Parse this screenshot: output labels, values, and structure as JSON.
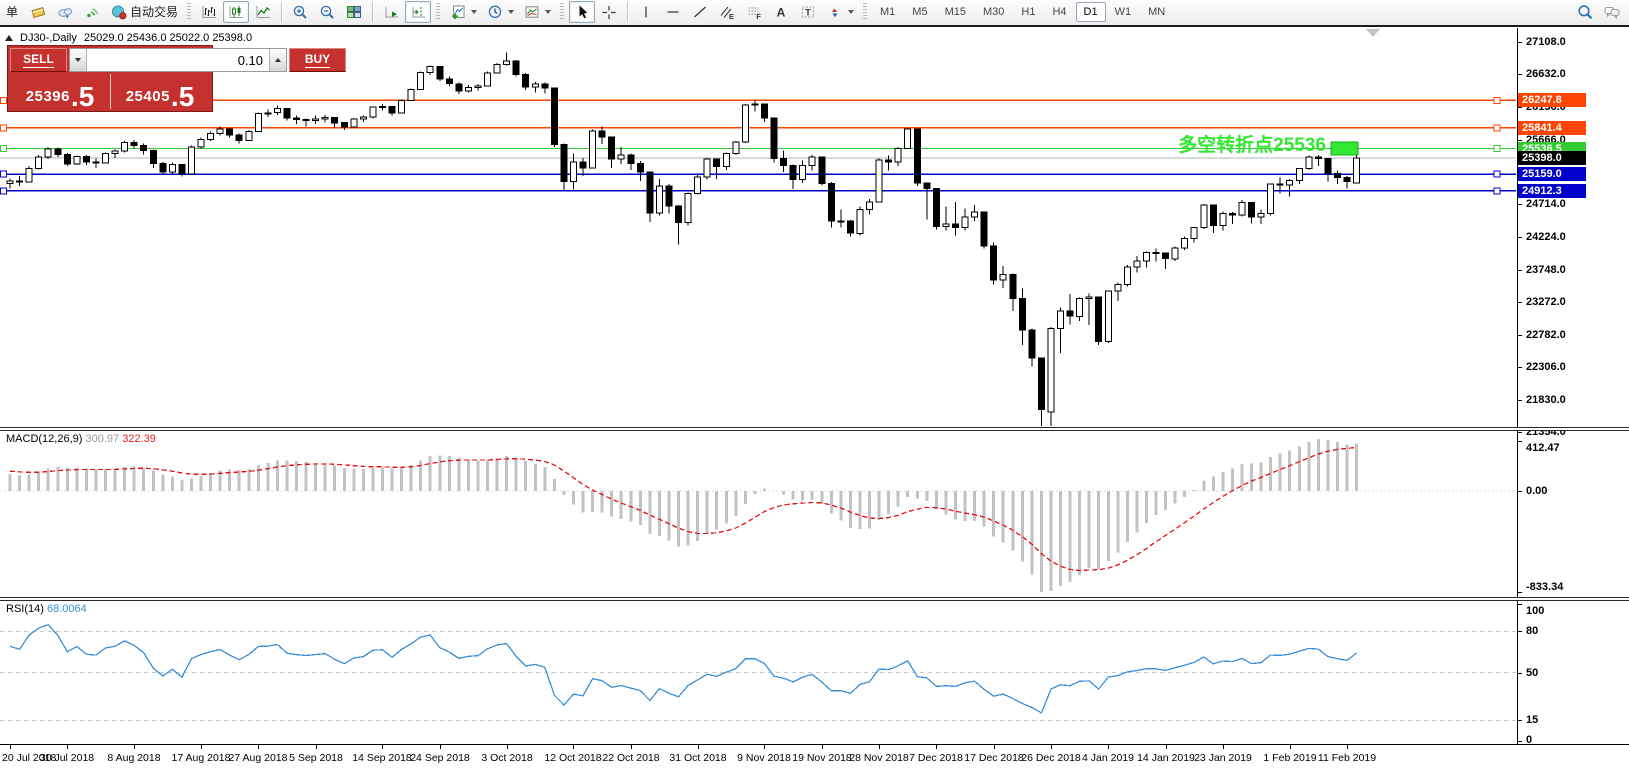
{
  "toolbar": {
    "timeframes": [
      "M1",
      "M5",
      "M15",
      "M30",
      "H1",
      "H4",
      "D1",
      "W1",
      "MN"
    ],
    "active_timeframe": "D1",
    "items": [
      {
        "t": "btn",
        "name": "new-order",
        "label": "单"
      },
      {
        "t": "btn",
        "name": "market-watch",
        "icon": "book"
      },
      {
        "t": "btn",
        "name": "chart-cloud",
        "icon": "cloud"
      },
      {
        "t": "btn",
        "name": "signals",
        "icon": "signal"
      },
      {
        "t": "btn",
        "name": "auto-trading",
        "icon": "autotrading",
        "label": "自动交易"
      },
      {
        "t": "grip"
      },
      {
        "t": "btn",
        "name": "bar-chart",
        "icon": "bars"
      },
      {
        "t": "btn",
        "name": "candlestick-chart",
        "icon": "candles",
        "pressed": true
      },
      {
        "t": "btn",
        "name": "line-chart",
        "icon": "linechart"
      },
      {
        "t": "sep"
      },
      {
        "t": "btn",
        "name": "zoom-in",
        "icon": "zoomin"
      },
      {
        "t": "btn",
        "name": "zoom-out",
        "icon": "zoomout"
      },
      {
        "t": "btn",
        "name": "tile-windows",
        "icon": "tiles"
      },
      {
        "t": "sep"
      },
      {
        "t": "btn",
        "name": "auto-scroll",
        "icon": "autoscroll"
      },
      {
        "t": "btn",
        "name": "chart-shift",
        "icon": "chartshift",
        "pressed": true
      },
      {
        "t": "grip"
      },
      {
        "t": "btn",
        "name": "indicators",
        "icon": "indicators",
        "caret": true
      },
      {
        "t": "btn",
        "name": "periods",
        "icon": "clock",
        "caret": true
      },
      {
        "t": "btn",
        "name": "templates",
        "icon": "template",
        "caret": true
      },
      {
        "t": "grip"
      },
      {
        "t": "btn",
        "name": "cursor",
        "icon": "cursor",
        "pressed": true
      },
      {
        "t": "btn",
        "name": "crosshair",
        "icon": "crosshair"
      },
      {
        "t": "sep"
      },
      {
        "t": "btn",
        "name": "vertical-line",
        "icon": "vline"
      },
      {
        "t": "btn",
        "name": "horizontal-line",
        "icon": "hline"
      },
      {
        "t": "btn",
        "name": "trendline",
        "icon": "trendline"
      },
      {
        "t": "btn",
        "name": "equidistant-channel",
        "icon": "channel",
        "glyph": "E"
      },
      {
        "t": "btn",
        "name": "fibonacci-retracement",
        "icon": "fibo",
        "glyph": "F"
      },
      {
        "t": "btn",
        "name": "text",
        "icon": "biga",
        "glyph": "A"
      },
      {
        "t": "btn",
        "name": "text-label",
        "icon": "labelt",
        "glyph": "T"
      },
      {
        "t": "btn",
        "name": "arrows",
        "icon": "arrows",
        "caret": true
      },
      {
        "t": "grip"
      },
      {
        "t": "tf"
      },
      {
        "t": "spacer"
      },
      {
        "t": "btn",
        "name": "search",
        "icon": "search"
      },
      {
        "t": "btn",
        "name": "chat",
        "icon": "chat"
      }
    ]
  },
  "chart_header": {
    "symbol_period": "DJ30-,Daily",
    "ohlc": "25029.0 25436.0 25022.0 25398.0"
  },
  "trade_panel": {
    "sell_label": "SELL",
    "buy_label": "BUY",
    "volume": "0.10",
    "sell_price": {
      "main": "25396",
      "fraction": ".5"
    },
    "buy_price": {
      "main": "25405",
      "fraction": ".5"
    }
  },
  "annotation": {
    "text": "多空转折点25536"
  },
  "price_axis": {
    "ticks": [
      27108,
      26632,
      26156,
      25666,
      25190,
      24714,
      24224,
      23748,
      23272,
      22782,
      22306,
      21830,
      21354
    ],
    "hlines": [
      {
        "label": "26247.8",
        "price": 26247.8,
        "color": "#ff4500"
      },
      {
        "label": "25841.4",
        "price": 25841.4,
        "color": "#ff4500"
      },
      {
        "label": "25536.5",
        "price": 25536.5,
        "color": "#33cc33"
      },
      {
        "label": "25159.0",
        "price": 25159.0,
        "color": "#0000cc"
      },
      {
        "label": "24912.3",
        "price": 24912.3,
        "color": "#0000cc"
      }
    ],
    "current": {
      "label": "25398.0",
      "price": 25398.0,
      "bg": "#000000"
    }
  },
  "indicators": {
    "macd": {
      "name": "MACD(12,26,9)",
      "value_main": "300.97",
      "value_signal": "322.39",
      "axis_top": "412.47",
      "axis_zero": "0.00",
      "axis_bottom": "-833.34",
      "fast": 12,
      "slow": 26,
      "signal": 9
    },
    "rsi": {
      "name": "RSI(14)",
      "value": "68.0064",
      "period": 14,
      "axis": [
        "100",
        "80",
        "50",
        "15",
        "0"
      ],
      "levels": [
        80,
        50,
        15
      ]
    }
  },
  "time_axis": {
    "labels": [
      [
        "20 Jul 2018",
        0
      ],
      [
        "30 Jul 2018",
        6
      ],
      [
        "8 Aug 2018",
        13
      ],
      [
        "17 Aug 2018",
        20
      ],
      [
        "27 Aug 2018",
        26
      ],
      [
        "5 Sep 2018",
        32
      ],
      [
        "14 Sep 2018",
        39
      ],
      [
        "24 Sep 2018",
        45
      ],
      [
        "3 Oct 2018",
        52
      ],
      [
        "12 Oct 2018",
        59
      ],
      [
        "22 Oct 2018",
        65
      ],
      [
        "31 Oct 2018",
        72
      ],
      [
        "9 Nov 2018",
        79
      ],
      [
        "19 Nov 2018",
        85
      ],
      [
        "28 Nov 2018",
        91
      ],
      [
        "7 Dec 2018",
        97
      ],
      [
        "17 Dec 2018",
        103
      ],
      [
        "26 Dec 2018",
        109
      ],
      [
        "4 Jan 2019",
        115
      ],
      [
        "14 Jan 2019",
        121
      ],
      [
        "23 Jan 2019",
        127
      ],
      [
        "1 Feb 2019",
        134
      ],
      [
        "11 Feb 2019",
        140
      ]
    ]
  },
  "chart_data": {
    "type": "candlestick",
    "symbol": "DJ30-",
    "period": "Daily",
    "last_ohlc": {
      "open": 25029.0,
      "high": 25436.0,
      "low": 25022.0,
      "close": 25398.0
    },
    "warmup_closes": [
      24310,
      24356,
      24402,
      24450,
      24400,
      24460,
      24520,
      24580,
      24540,
      24600,
      24660,
      24710,
      24760,
      24720,
      24780,
      24830,
      24880,
      24850,
      24900,
      24950,
      25000,
      24960,
      25010,
      25050,
      25090,
      25060,
      25100,
      25080,
      25120,
      25090,
      25110,
      25080,
      25060,
      25050
    ],
    "candles": [
      [
        25020,
        25095,
        24950,
        25058
      ],
      [
        25058,
        25130,
        24980,
        25044
      ],
      [
        25044,
        25280,
        25040,
        25242
      ],
      [
        25242,
        25440,
        25230,
        25414
      ],
      [
        25414,
        25560,
        25380,
        25527
      ],
      [
        25527,
        25550,
        25410,
        25451
      ],
      [
        25451,
        25470,
        25280,
        25307
      ],
      [
        25307,
        25430,
        25290,
        25415
      ],
      [
        25415,
        25440,
        25290,
        25334
      ],
      [
        25334,
        25390,
        25250,
        25326
      ],
      [
        25326,
        25480,
        25320,
        25463
      ],
      [
        25463,
        25520,
        25400,
        25502
      ],
      [
        25502,
        25650,
        25480,
        25628
      ],
      [
        25628,
        25660,
        25540,
        25584
      ],
      [
        25584,
        25610,
        25450,
        25509
      ],
      [
        25509,
        25520,
        25250,
        25313
      ],
      [
        25313,
        25340,
        25150,
        25188
      ],
      [
        25188,
        25330,
        25160,
        25300
      ],
      [
        25300,
        25310,
        25120,
        25162
      ],
      [
        25162,
        25580,
        25160,
        25559
      ],
      [
        25559,
        25700,
        25540,
        25669
      ],
      [
        25669,
        25790,
        25650,
        25759
      ],
      [
        25759,
        25860,
        25730,
        25822
      ],
      [
        25822,
        25840,
        25700,
        25734
      ],
      [
        25734,
        25760,
        25608,
        25657
      ],
      [
        25657,
        25810,
        25650,
        25790
      ],
      [
        25790,
        26070,
        25780,
        26050
      ],
      [
        26050,
        26110,
        26000,
        26064
      ],
      [
        26064,
        26170,
        26030,
        26125
      ],
      [
        26125,
        26130,
        25950,
        25987
      ],
      [
        25987,
        26020,
        25900,
        25965
      ],
      [
        25965,
        25980,
        25860,
        25952
      ],
      [
        25952,
        26020,
        25900,
        25975
      ],
      [
        25975,
        26030,
        25920,
        25996
      ],
      [
        25996,
        26000,
        25850,
        25917
      ],
      [
        25917,
        25930,
        25810,
        25857
      ],
      [
        25857,
        25990,
        25850,
        25971
      ],
      [
        25971,
        26020,
        25930,
        25999
      ],
      [
        25999,
        26160,
        25980,
        26146
      ],
      [
        26146,
        26190,
        26100,
        26155
      ],
      [
        26155,
        26160,
        26020,
        26062
      ],
      [
        26062,
        26260,
        26050,
        26246
      ],
      [
        26246,
        26420,
        26240,
        26406
      ],
      [
        26406,
        26670,
        26400,
        26657
      ],
      [
        26657,
        26760,
        26620,
        26744
      ],
      [
        26744,
        26750,
        26530,
        26562
      ],
      [
        26562,
        26600,
        26460,
        26492
      ],
      [
        26492,
        26510,
        26340,
        26385
      ],
      [
        26385,
        26470,
        26360,
        26440
      ],
      [
        26440,
        26490,
        26390,
        26458
      ],
      [
        26458,
        26670,
        26450,
        26651
      ],
      [
        26651,
        26800,
        26640,
        26774
      ],
      [
        26774,
        26951,
        26760,
        26828
      ],
      [
        26828,
        26840,
        26600,
        26627
      ],
      [
        26627,
        26650,
        26400,
        26447
      ],
      [
        26447,
        26520,
        26360,
        26486
      ],
      [
        26486,
        26510,
        26350,
        26430
      ],
      [
        26430,
        26440,
        25560,
        25599
      ],
      [
        25599,
        25610,
        24900,
        25053
      ],
      [
        25053,
        25460,
        24930,
        25340
      ],
      [
        25340,
        25400,
        25130,
        25251
      ],
      [
        25251,
        25820,
        25240,
        25798
      ],
      [
        25798,
        25860,
        25600,
        25707
      ],
      [
        25707,
        25710,
        25250,
        25379
      ],
      [
        25379,
        25560,
        25310,
        25444
      ],
      [
        25444,
        25460,
        25220,
        25317
      ],
      [
        25317,
        25350,
        25060,
        25191
      ],
      [
        25191,
        25200,
        24450,
        24583
      ],
      [
        24583,
        25090,
        24550,
        24985
      ],
      [
        24985,
        25010,
        24580,
        24688
      ],
      [
        24688,
        24700,
        24122,
        24443
      ],
      [
        24443,
        24890,
        24400,
        24875
      ],
      [
        24875,
        25170,
        24860,
        25116
      ],
      [
        25116,
        25400,
        25080,
        25381
      ],
      [
        25381,
        25390,
        25090,
        25271
      ],
      [
        25271,
        25480,
        25220,
        25462
      ],
      [
        25462,
        25650,
        25440,
        25635
      ],
      [
        25635,
        26190,
        25620,
        26180
      ],
      [
        26180,
        26250,
        26080,
        26191
      ],
      [
        26191,
        26200,
        25930,
        25989
      ],
      [
        25989,
        25990,
        25330,
        25387
      ],
      [
        25387,
        25510,
        25190,
        25286
      ],
      [
        25286,
        25300,
        24940,
        25081
      ],
      [
        25081,
        25360,
        25030,
        25289
      ],
      [
        25289,
        25440,
        25210,
        25413
      ],
      [
        25413,
        25420,
        24990,
        25017
      ],
      [
        25017,
        25040,
        24370,
        24466
      ],
      [
        24466,
        24640,
        24370,
        24465
      ],
      [
        24465,
        24480,
        24240,
        24286
      ],
      [
        24286,
        24680,
        24250,
        24640
      ],
      [
        24640,
        24790,
        24560,
        24748
      ],
      [
        24748,
        25390,
        24740,
        25366
      ],
      [
        25366,
        25430,
        25210,
        25339
      ],
      [
        25339,
        25560,
        25280,
        25538
      ],
      [
        25538,
        25840,
        25530,
        25826
      ],
      [
        25826,
        25830,
        24980,
        25027
      ],
      [
        25027,
        25030,
        24490,
        24948
      ],
      [
        24948,
        24950,
        24340,
        24389
      ],
      [
        24389,
        24680,
        24330,
        24423
      ],
      [
        24423,
        24750,
        24250,
        24370
      ],
      [
        24370,
        24650,
        24330,
        24527
      ],
      [
        24527,
        24700,
        24470,
        24597
      ],
      [
        24597,
        24600,
        24060,
        24101
      ],
      [
        24101,
        24150,
        23530,
        23593
      ],
      [
        23593,
        23800,
        23480,
        23676
      ],
      [
        23676,
        23690,
        23140,
        23324
      ],
      [
        23324,
        23470,
        22640,
        22860
      ],
      [
        22860,
        22880,
        22320,
        22445
      ],
      [
        22445,
        22450,
        21380,
        21690
      ],
      [
        21650,
        22900,
        21360,
        22878
      ],
      [
        22878,
        23190,
        22520,
        23139
      ],
      [
        23139,
        23390,
        22940,
        23062
      ],
      [
        23062,
        23340,
        22990,
        23327
      ],
      [
        23327,
        23400,
        22930,
        23346
      ],
      [
        23346,
        23350,
        22640,
        22686
      ],
      [
        22686,
        23440,
        22670,
        23433
      ],
      [
        23433,
        23560,
        23290,
        23531
      ],
      [
        23531,
        23820,
        23500,
        23787
      ],
      [
        23787,
        23950,
        23710,
        23879
      ],
      [
        23879,
        24020,
        23780,
        24002
      ],
      [
        24002,
        24060,
        23870,
        23996
      ],
      [
        23996,
        24000,
        23760,
        23910
      ],
      [
        23910,
        24090,
        23880,
        24066
      ],
      [
        24066,
        24240,
        24040,
        24207
      ],
      [
        24207,
        24380,
        24150,
        24370
      ],
      [
        24370,
        24720,
        24350,
        24706
      ],
      [
        24706,
        24710,
        24290,
        24404
      ],
      [
        24404,
        24610,
        24330,
        24576
      ],
      [
        24576,
        24600,
        24420,
        24553
      ],
      [
        24553,
        24780,
        24530,
        24737
      ],
      [
        24737,
        24740,
        24430,
        24528
      ],
      [
        24528,
        24640,
        24420,
        24580
      ],
      [
        24580,
        25020,
        24550,
        25014
      ],
      [
        25014,
        25110,
        24870,
        24999
      ],
      [
        24999,
        25090,
        24830,
        25064
      ],
      [
        25064,
        25250,
        25010,
        25239
      ],
      [
        25239,
        25430,
        25220,
        25411
      ],
      [
        25411,
        25440,
        25280,
        25390
      ],
      [
        25390,
        25400,
        25050,
        25169
      ],
      [
        25169,
        25210,
        25010,
        25106
      ],
      [
        25106,
        25130,
        24950,
        25053
      ],
      [
        25029,
        25436,
        25022,
        25398
      ]
    ]
  },
  "colors": {
    "bull": "#ffffff",
    "bear": "#000000",
    "wick": "#000000",
    "silver_price": "#b4b4b4",
    "macd_hist": "#c2c2c2",
    "macd_signal": "#e81111",
    "rsi_line": "#3a8fd9",
    "annotation": "#33e833",
    "level_dash": "#c9c9c9",
    "panel_red": "#c5312c"
  }
}
